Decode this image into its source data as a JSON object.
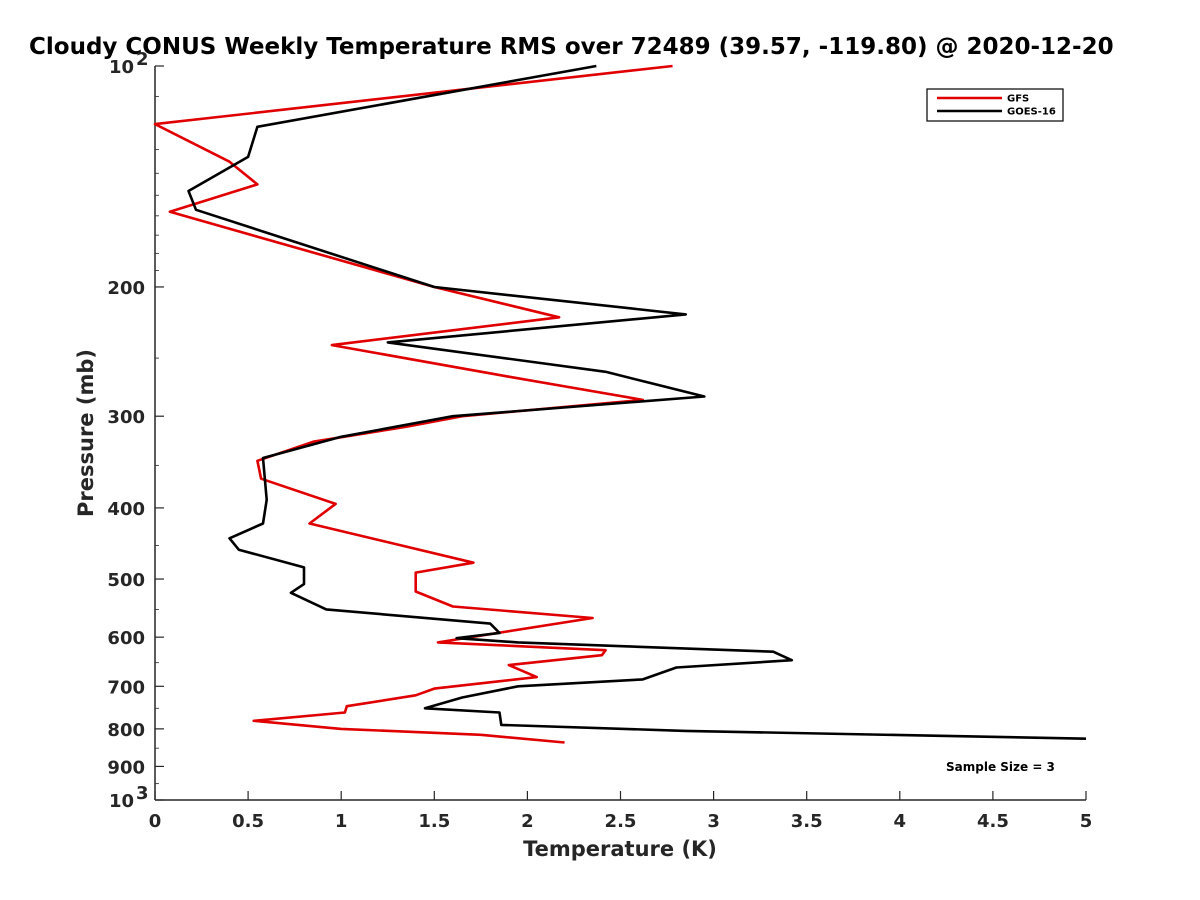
{
  "chart_data": {
    "type": "line",
    "title": "Cloudy CONUS Weekly Temperature RMS over 72489 (39.57, -119.80) @ 2020-12-20",
    "xlabel": "Temperature (K)",
    "ylabel": "Pressure (mb)",
    "xlim": [
      0,
      5
    ],
    "ylim": [
      100,
      1000
    ],
    "y_scale": "log",
    "y_reversed": true,
    "x_ticks": [
      "0",
      "0.5",
      "1",
      "1.5",
      "2",
      "2.5",
      "3",
      "3.5",
      "4",
      "4.5",
      "5"
    ],
    "y_ticks": [
      {
        "value": 100,
        "label": "10",
        "exp": "2"
      },
      {
        "value": 200,
        "label": "200"
      },
      {
        "value": 300,
        "label": "300"
      },
      {
        "value": 400,
        "label": "400"
      },
      {
        "value": 500,
        "label": "500"
      },
      {
        "value": 600,
        "label": "600"
      },
      {
        "value": 700,
        "label": "700"
      },
      {
        "value": 800,
        "label": "800"
      },
      {
        "value": 900,
        "label": "900"
      },
      {
        "value": 1000,
        "label": "10",
        "exp": "3"
      }
    ],
    "grid": false,
    "legend_position": "top-right",
    "annotation": "Sample Size = 3",
    "series": [
      {
        "name": "GFS",
        "color": "#e00000",
        "x": [
          2.78,
          0.0,
          0.4,
          0.55,
          0.08,
          1.5,
          2.17,
          0.95,
          1.9,
          2.62,
          1.65,
          1.35,
          0.85,
          0.55,
          0.57,
          0.97,
          0.83,
          1.71,
          1.4,
          1.4,
          1.6,
          2.35,
          1.52,
          2.42,
          2.4,
          1.9,
          2.05,
          1.5,
          1.4,
          1.03,
          1.02,
          0.53,
          1.0,
          1.75,
          2.2
        ],
        "y": [
          100,
          120,
          135,
          145,
          158,
          200,
          220,
          240,
          265,
          285,
          300,
          310,
          325,
          345,
          365,
          395,
          420,
          475,
          490,
          520,
          545,
          565,
          610,
          625,
          635,
          655,
          680,
          705,
          720,
          745,
          760,
          780,
          800,
          815,
          835
        ]
      },
      {
        "name": "GOES-16",
        "color": "#000000",
        "x": [
          2.37,
          0.55,
          0.5,
          0.18,
          0.22,
          1.5,
          2.85,
          1.25,
          2.42,
          2.95,
          1.6,
          1.0,
          0.58,
          0.6,
          0.58,
          0.4,
          0.45,
          0.8,
          0.8,
          0.73,
          0.92,
          1.8,
          1.85,
          1.62,
          1.95,
          3.32,
          3.42,
          2.8,
          2.62,
          1.95,
          1.65,
          1.45,
          1.85,
          1.86,
          2.85,
          5.0
        ],
        "y": [
          100,
          121,
          133,
          148,
          157,
          200,
          218,
          238,
          261,
          282,
          300,
          320,
          342,
          390,
          420,
          440,
          456,
          482,
          508,
          522,
          550,
          575,
          592,
          602,
          610,
          628,
          645,
          660,
          685,
          700,
          725,
          750,
          760,
          790,
          805,
          825
        ]
      }
    ]
  }
}
